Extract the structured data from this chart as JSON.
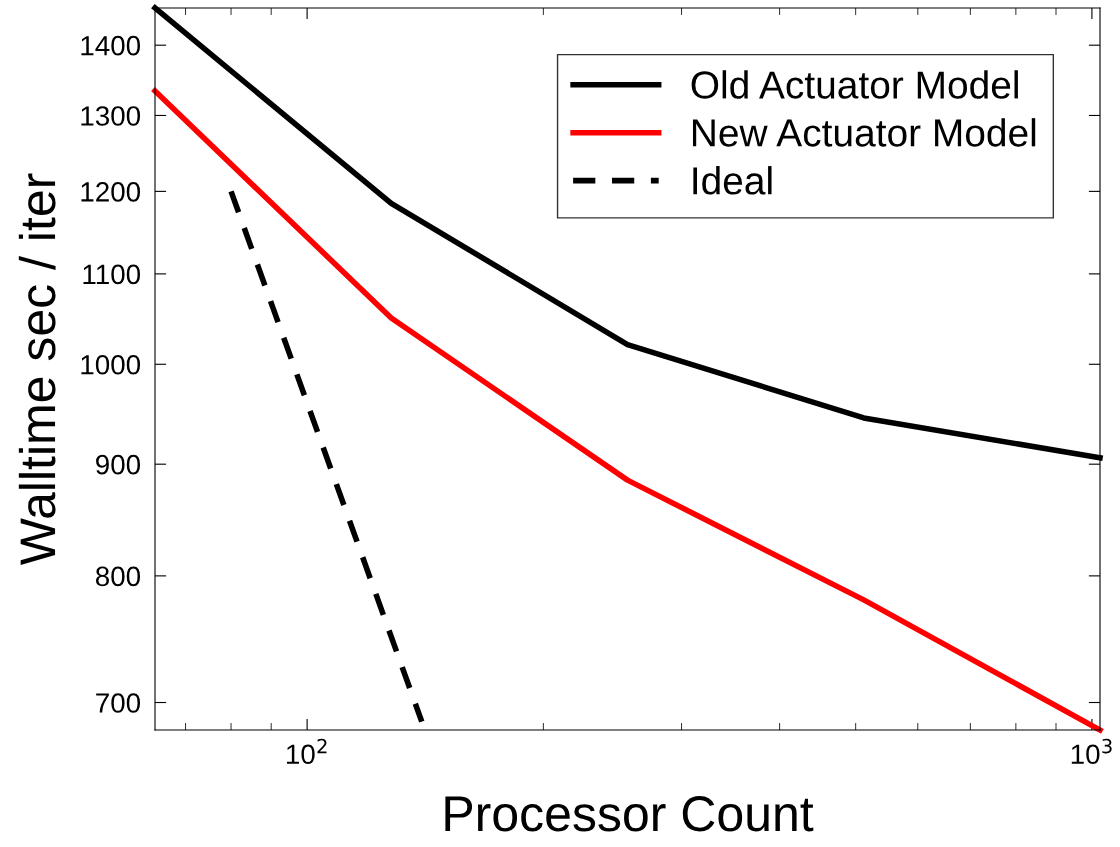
{
  "chart_data": {
    "type": "line",
    "xlabel": "Processor Count",
    "ylabel": "Walltime sec / iter",
    "log": "xy",
    "xlim": [
      64,
      1024
    ],
    "ylim": [
      680,
      1456
    ],
    "xticks": [
      {
        "value": 100,
        "label": "10$^{2}$"
      },
      {
        "value": 1000,
        "label": "10$^{3}$"
      }
    ],
    "yticks": [
      700,
      800,
      900,
      1000,
      1100,
      1200,
      1300,
      1400
    ],
    "grid": false,
    "legend": "top right",
    "marker": "none",
    "x": [
      64,
      128,
      256,
      512,
      1024
    ],
    "series": [
      {
        "name": "Old Actuator Model",
        "color": "#000000",
        "values": [
          1456,
          1185,
          1021,
          945,
          906
        ]
      },
      {
        "name": "New Actuator Model",
        "color": "#ff0000",
        "values": [
          1334,
          1050,
          885,
          780,
          680
        ]
      },
      {
        "name": "Ideal",
        "color": "#000000",
        "x": [
          80,
          140
        ],
        "values": [
          1200,
          686
        ],
        "line_style": "dashed"
      }
    ]
  }
}
